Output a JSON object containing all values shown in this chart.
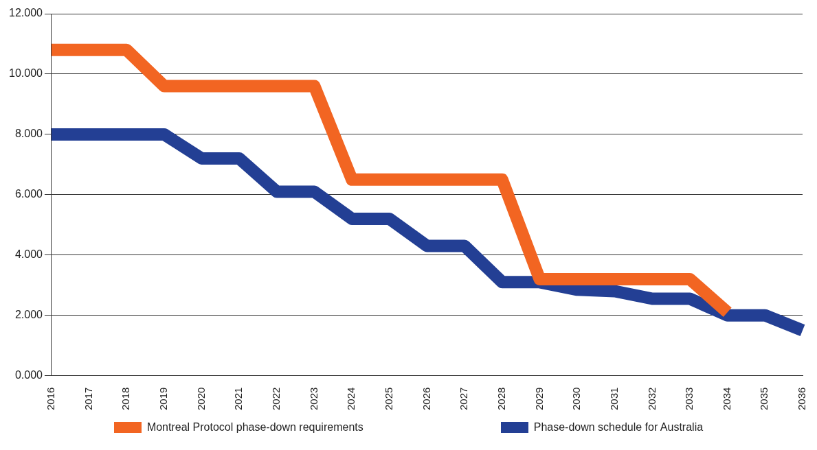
{
  "chart_data": {
    "type": "line",
    "categories": [
      "2016",
      "2017",
      "2018",
      "2019",
      "2020",
      "2021",
      "2022",
      "2023",
      "2024",
      "2025",
      "2026",
      "2027",
      "2028",
      "2029",
      "2030",
      "2031",
      "2032",
      "2033",
      "2034",
      "2035",
      "2036"
    ],
    "series": [
      {
        "name": "Montreal Protocol phase-down requirements",
        "color": "#f26522",
        "values": [
          10.8,
          10.8,
          10.8,
          9.6,
          9.6,
          9.6,
          9.6,
          9.6,
          6.5,
          6.5,
          6.5,
          6.5,
          6.5,
          3.2,
          3.2,
          3.2,
          3.2,
          3.2,
          2.1,
          null,
          null
        ]
      },
      {
        "name": "Phase-down schedule for Australia",
        "color": "#233f94",
        "values": [
          8,
          8,
          8,
          8,
          7.2,
          7.2,
          6.1,
          6.1,
          5.2,
          5.2,
          4.3,
          4.3,
          3.1,
          3.1,
          2.85,
          2.8,
          2.55,
          2.55,
          2,
          2,
          1.5
        ]
      }
    ],
    "ylim": [
      0,
      12
    ],
    "yticks": [
      {
        "value": 0,
        "label": "0.000"
      },
      {
        "value": 2,
        "label": "2.000"
      },
      {
        "value": 4,
        "label": "4.000"
      },
      {
        "value": 6,
        "label": "6.000"
      },
      {
        "value": 8,
        "label": "8.000"
      },
      {
        "value": 10,
        "label": "10.000"
      },
      {
        "value": 12,
        "label": "12.000"
      }
    ],
    "grid": "y",
    "legend": "bottom",
    "marker": "none",
    "line_style": "solid"
  }
}
